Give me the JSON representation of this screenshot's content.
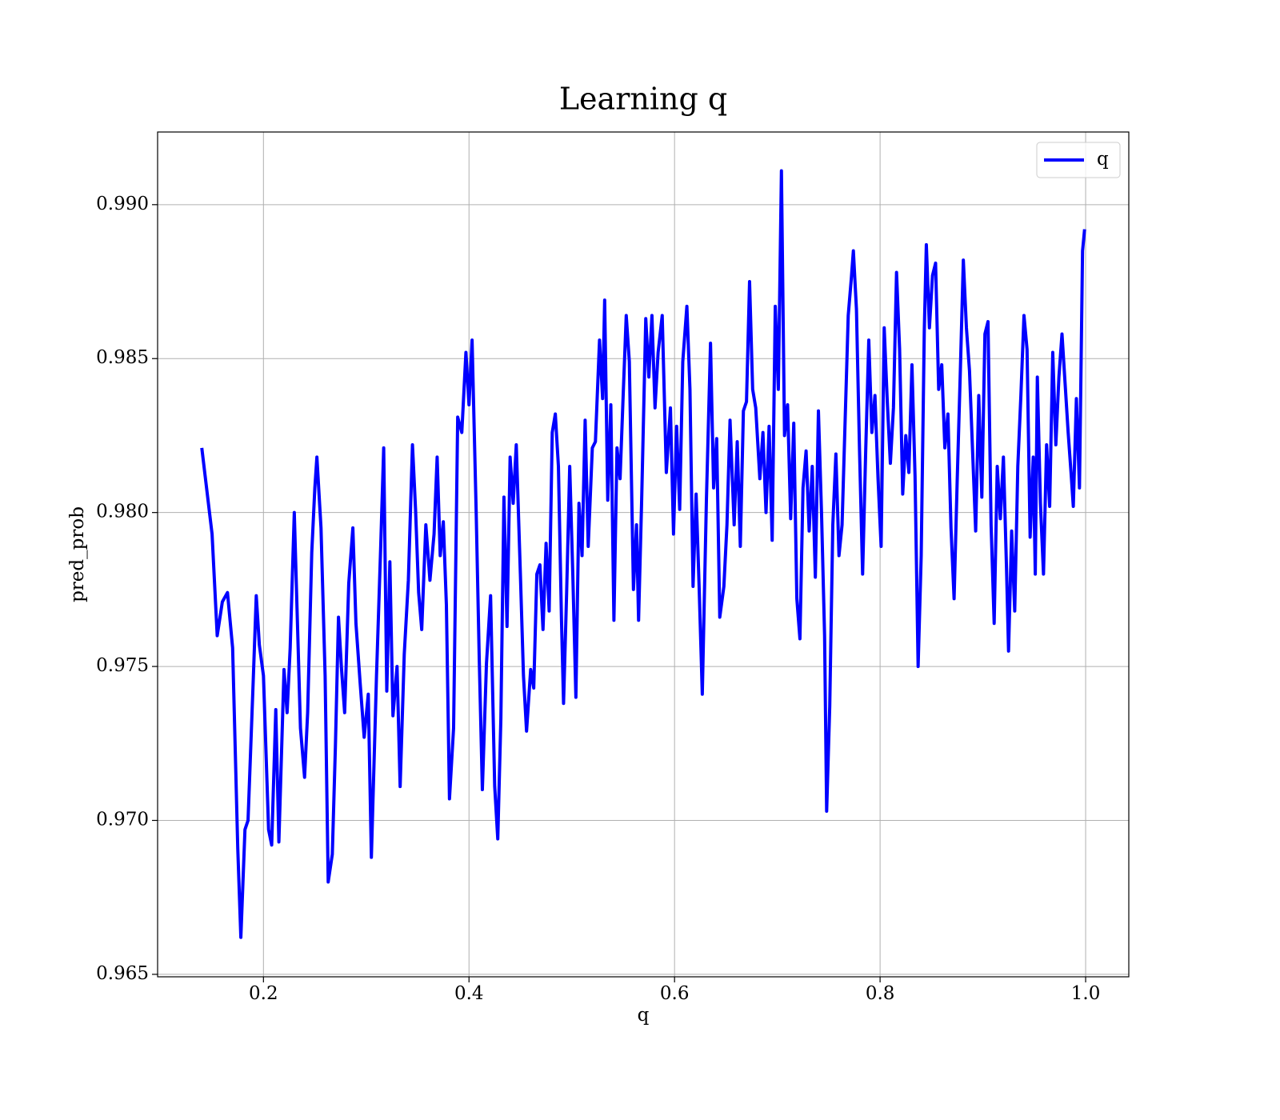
{
  "chart_data": {
    "type": "line",
    "title": "Learning q",
    "xlabel": "q",
    "ylabel": "pred_prob",
    "xlim": [
      0.097,
      1.042
    ],
    "ylim": [
      0.96492,
      0.99236
    ],
    "xticks": [
      0.2,
      0.4,
      0.6,
      0.8,
      {
        "value": 1,
        "label": "1.0"
      }
    ],
    "yticks": [
      0.965,
      {
        "value": 0.97,
        "label": "0.970"
      },
      0.975,
      {
        "value": 0.98,
        "label": "0.980"
      },
      0.985,
      {
        "value": 0.99,
        "label": "0.990"
      }
    ],
    "grid": true,
    "legend": "upper right",
    "x": [
      0.14,
      0.15,
      0.155,
      0.16,
      0.165,
      0.17,
      0.175,
      0.178,
      0.182,
      0.185,
      0.19,
      0.193,
      0.196,
      0.2,
      0.205,
      0.208,
      0.212,
      0.215,
      0.22,
      0.223,
      0.226,
      0.23,
      0.233,
      0.236,
      0.24,
      0.243,
      0.247,
      0.25,
      0.252,
      0.256,
      0.26,
      0.263,
      0.267,
      0.27,
      0.273,
      0.276,
      0.279,
      0.283,
      0.287,
      0.29,
      0.294,
      0.298,
      0.302,
      0.305,
      0.31,
      0.314,
      0.317,
      0.32,
      0.323,
      0.326,
      0.33,
      0.333,
      0.337,
      0.341,
      0.345,
      0.348,
      0.351,
      0.354,
      0.358,
      0.362,
      0.366,
      0.369,
      0.372,
      0.375,
      0.378,
      0.381,
      0.385,
      0.389,
      0.393,
      0.397,
      0.4,
      0.403,
      0.407,
      0.41,
      0.413,
      0.417,
      0.421,
      0.425,
      0.428,
      0.431,
      0.434,
      0.437,
      0.44,
      0.443,
      0.446,
      0.45,
      0.453,
      0.456,
      0.46,
      0.463,
      0.466,
      0.469,
      0.472,
      0.475,
      0.478,
      0.481,
      0.484,
      0.487,
      0.49,
      0.492,
      0.495,
      0.498,
      0.501,
      0.504,
      0.507,
      0.51,
      0.513,
      0.516,
      0.52,
      0.523,
      0.527,
      0.53,
      0.532,
      0.535,
      0.538,
      0.541,
      0.544,
      0.547,
      0.55,
      0.553,
      0.556,
      0.56,
      0.563,
      0.565,
      0.568,
      0.572,
      0.575,
      0.578,
      0.581,
      0.584,
      0.588,
      0.592,
      0.596,
      0.599,
      0.602,
      0.605,
      0.608,
      0.612,
      0.615,
      0.618,
      0.621,
      0.624,
      0.627,
      0.631,
      0.635,
      0.638,
      0.641,
      0.644,
      0.648,
      0.651,
      0.654,
      0.658,
      0.661,
      0.664,
      0.667,
      0.67,
      0.673,
      0.676,
      0.679,
      0.683,
      0.686,
      0.689,
      0.692,
      0.695,
      0.698,
      0.701,
      0.704,
      0.707,
      0.71,
      0.713,
      0.716,
      0.719,
      0.722,
      0.725,
      0.728,
      0.731,
      0.734,
      0.737,
      0.74,
      0.743,
      0.746,
      0.748,
      0.751,
      0.754,
      0.757,
      0.76,
      0.763,
      0.766,
      0.769,
      0.772,
      0.774,
      0.777,
      0.78,
      0.783,
      0.786,
      0.789,
      0.792,
      0.795,
      0.798,
      0.801,
      0.804,
      0.807,
      0.81,
      0.813,
      0.816,
      0.819,
      0.822,
      0.825,
      0.828,
      0.831,
      0.834,
      0.837,
      0.84,
      0.843,
      0.845,
      0.848,
      0.851,
      0.854,
      0.857,
      0.86,
      0.863,
      0.866,
      0.869,
      0.872,
      0.875,
      0.878,
      0.881,
      0.884,
      0.887,
      0.89,
      0.893,
      0.896,
      0.899,
      0.902,
      0.905,
      0.908,
      0.911,
      0.914,
      0.917,
      0.92,
      0.923,
      0.925,
      0.928,
      0.931,
      0.934,
      0.937,
      0.94,
      0.943,
      0.946,
      0.949,
      0.951,
      0.953,
      0.956,
      0.959,
      0.962,
      0.965,
      0.968,
      0.971,
      0.974,
      0.977,
      0.98,
      0.983,
      0.986,
      0.988,
      0.991,
      0.994,
      0.997,
      0.999
    ],
    "series": [
      {
        "name": "q",
        "color": "#0000ff",
        "values": [
          0.9821,
          0.9793,
          0.976,
          0.9771,
          0.9774,
          0.9756,
          0.9691,
          0.9662,
          0.9697,
          0.97,
          0.9745,
          0.9773,
          0.9757,
          0.9747,
          0.9697,
          0.9692,
          0.9736,
          0.9693,
          0.9749,
          0.9735,
          0.9756,
          0.98,
          0.9765,
          0.973,
          0.9714,
          0.9735,
          0.9787,
          0.9808,
          0.9818,
          0.9795,
          0.9747,
          0.968,
          0.9689,
          0.9724,
          0.9766,
          0.9749,
          0.9735,
          0.9777,
          0.9795,
          0.9764,
          0.9745,
          0.9727,
          0.9741,
          0.9688,
          0.9747,
          0.9788,
          0.9821,
          0.9742,
          0.9784,
          0.9734,
          0.975,
          0.9711,
          0.9754,
          0.9778,
          0.9822,
          0.9801,
          0.9774,
          0.9762,
          0.9796,
          0.9778,
          0.9793,
          0.9818,
          0.9786,
          0.9797,
          0.977,
          0.9707,
          0.973,
          0.9831,
          0.9826,
          0.9852,
          0.9835,
          0.9856,
          0.98,
          0.9752,
          0.971,
          0.9751,
          0.9773,
          0.9711,
          0.9694,
          0.9733,
          0.9805,
          0.9763,
          0.9818,
          0.9803,
          0.9822,
          0.978,
          0.9747,
          0.9729,
          0.9749,
          0.9743,
          0.978,
          0.9783,
          0.9762,
          0.979,
          0.9768,
          0.9826,
          0.9832,
          0.9815,
          0.9765,
          0.9738,
          0.9774,
          0.9815,
          0.978,
          0.974,
          0.9803,
          0.9786,
          0.983,
          0.9789,
          0.9821,
          0.9823,
          0.9856,
          0.9837,
          0.9869,
          0.9804,
          0.9835,
          0.9765,
          0.9821,
          0.9811,
          0.9838,
          0.9864,
          0.9849,
          0.9775,
          0.9796,
          0.9765,
          0.9804,
          0.9863,
          0.9844,
          0.9864,
          0.9834,
          0.9852,
          0.9864,
          0.9813,
          0.9834,
          0.9793,
          0.9828,
          0.9801,
          0.9849,
          0.9867,
          0.984,
          0.9776,
          0.9806,
          0.9775,
          0.9741,
          0.9804,
          0.9855,
          0.9808,
          0.9824,
          0.9766,
          0.9776,
          0.9796,
          0.983,
          0.9796,
          0.9823,
          0.9789,
          0.9833,
          0.9836,
          0.9875,
          0.984,
          0.9834,
          0.9811,
          0.9826,
          0.98,
          0.9828,
          0.9791,
          0.9867,
          0.984,
          0.9911,
          0.9825,
          0.9835,
          0.9798,
          0.9829,
          0.9772,
          0.9759,
          0.9808,
          0.982,
          0.9794,
          0.9815,
          0.9779,
          0.9833,
          0.98,
          0.976,
          0.9703,
          0.9737,
          0.9796,
          0.9819,
          0.9786,
          0.9796,
          0.983,
          0.9864,
          0.9876,
          0.9885,
          0.9866,
          0.982,
          0.978,
          0.982,
          0.9856,
          0.9826,
          0.9838,
          0.9811,
          0.9789,
          0.986,
          0.9836,
          0.9816,
          0.9834,
          0.9878,
          0.9853,
          0.9806,
          0.9825,
          0.9813,
          0.9848,
          0.9812,
          0.975,
          0.9786,
          0.9859,
          0.9887,
          0.986,
          0.9877,
          0.9881,
          0.984,
          0.9848,
          0.9821,
          0.9832,
          0.9795,
          0.9772,
          0.981,
          0.9845,
          0.9882,
          0.986,
          0.9846,
          0.982,
          0.9794,
          0.9838,
          0.9805,
          0.9858,
          0.9862,
          0.9796,
          0.9764,
          0.9815,
          0.9798,
          0.9818,
          0.9782,
          0.9755,
          0.9794,
          0.9768,
          0.9815,
          0.9838,
          0.9864,
          0.9853,
          0.9792,
          0.9818,
          0.978,
          0.9844,
          0.9803,
          0.978,
          0.9822,
          0.9802,
          0.9852,
          0.9822,
          0.9844,
          0.9858,
          0.9842,
          0.9826,
          0.9812,
          0.9802,
          0.9837,
          0.9808,
          0.9885,
          0.9892
        ]
      }
    ]
  }
}
